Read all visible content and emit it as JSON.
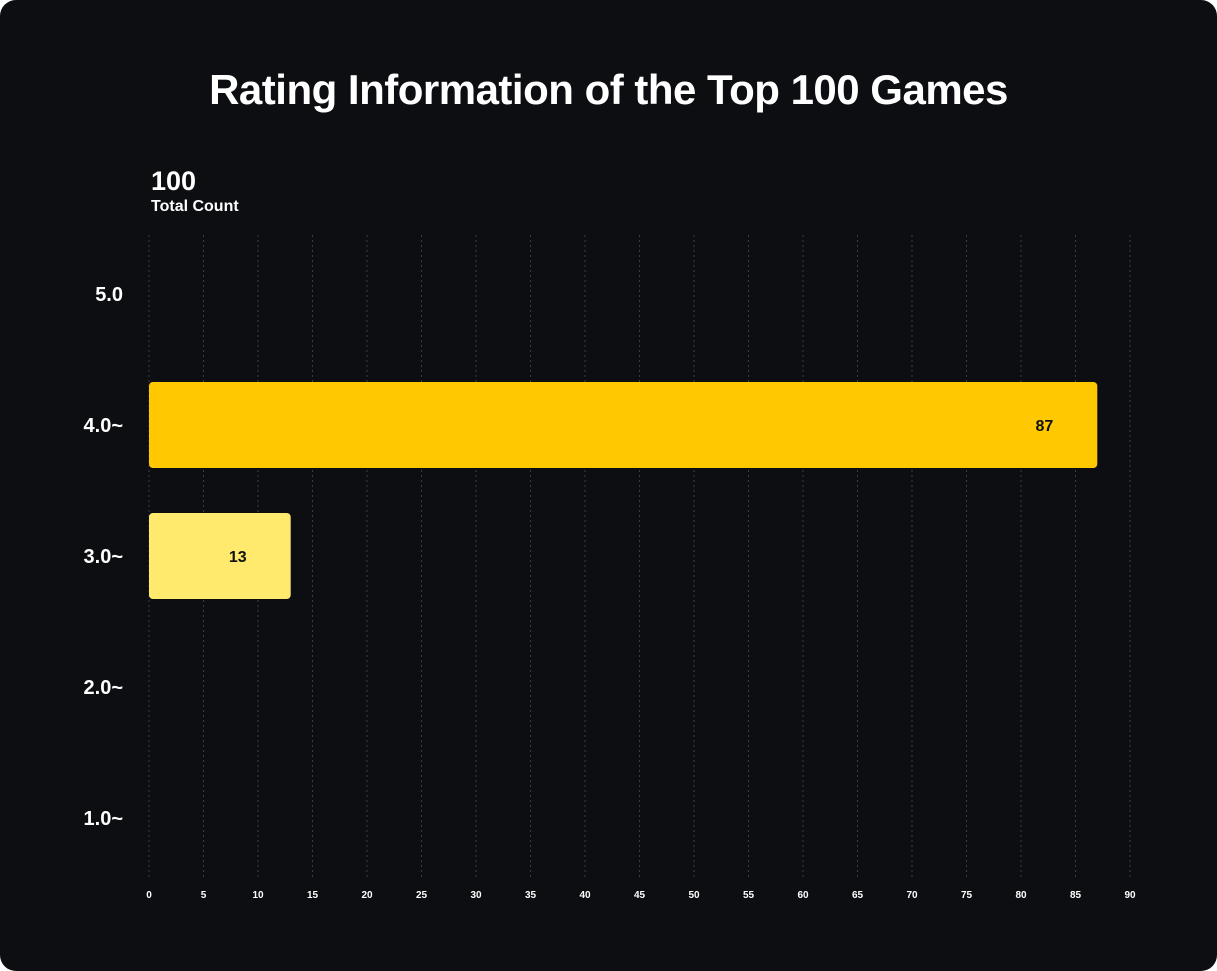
{
  "chart_data": {
    "type": "bar",
    "orientation": "horizontal",
    "title": "Rating Information of the Top 100 Games",
    "total": {
      "value": "100",
      "label": "Total Count"
    },
    "categories": [
      "5.0",
      "4.0~",
      "3.0~",
      "2.0~",
      "1.0~"
    ],
    "values": [
      0,
      87,
      13,
      0,
      0
    ],
    "bar_labels": [
      "",
      "87",
      "13",
      "",
      ""
    ],
    "bar_colors": [
      "#ffc800",
      "#ffc800",
      "#ffea6e",
      "#ffc800",
      "#ffc800"
    ],
    "xticks": [
      0,
      5,
      10,
      15,
      20,
      25,
      30,
      35,
      40,
      45,
      50,
      55,
      60,
      65,
      70,
      75,
      80,
      85,
      90
    ],
    "xlim": [
      0,
      90
    ],
    "grid": true,
    "grid_color": "#3a3d44",
    "background": "#0d0e12",
    "text_color": "#ffffff"
  }
}
